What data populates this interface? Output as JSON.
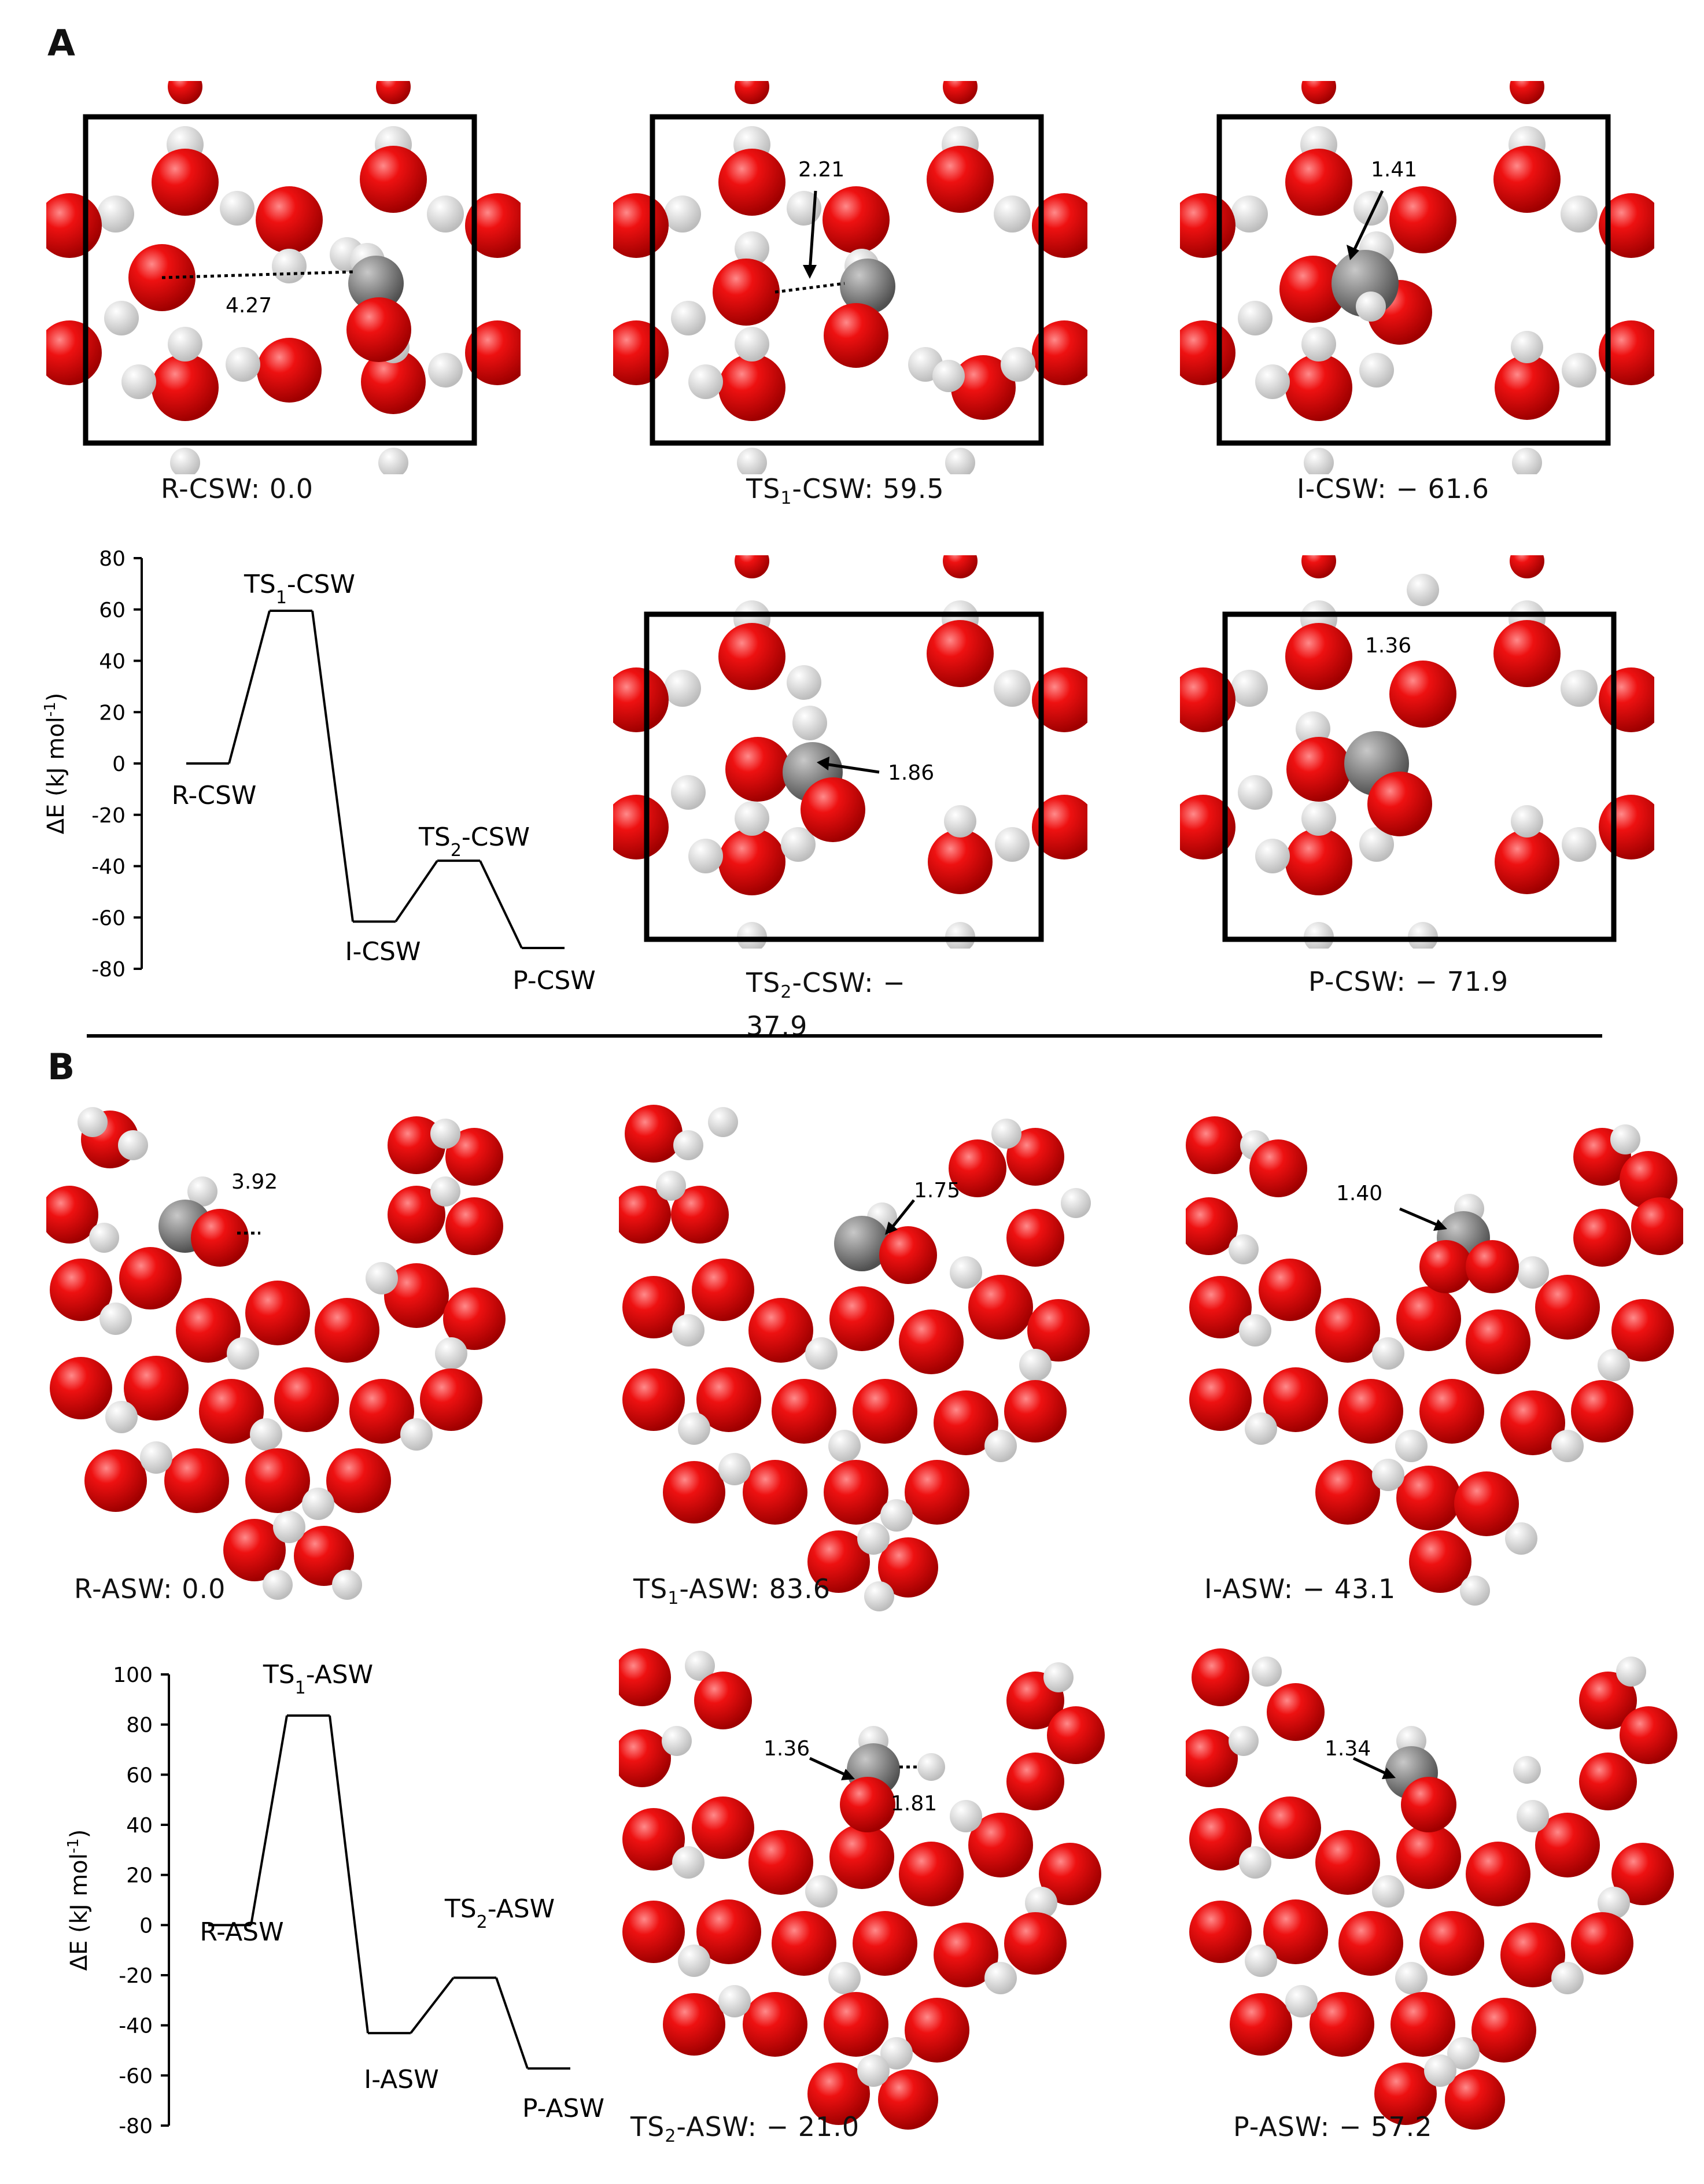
{
  "panels": {
    "a": "A",
    "b": "B"
  },
  "colors": {
    "oxygen": "#e00000",
    "hydrogen": "#f2f2f2",
    "carbon": "#808080",
    "cell": "#000000"
  },
  "csw": {
    "structures": [
      {
        "label": "R-CSW: 0.0",
        "distance": "4.27"
      },
      {
        "label_pre": "TS",
        "label_sub": "1",
        "label_post": "-CSW: 59.5",
        "distance": "2.21"
      },
      {
        "label": "I-CSW: − 61.6",
        "distance": "1.41"
      },
      {
        "label_pre": "TS",
        "label_sub": "2",
        "label_post": "-CSW: −",
        "label_line2": "37.9",
        "distance": "1.86"
      },
      {
        "label": "P-CSW: − 71.9",
        "distance": "1.36"
      }
    ]
  },
  "asw": {
    "structures": [
      {
        "label": "R-ASW: 0.0",
        "distance": "3.92"
      },
      {
        "label_pre": "TS",
        "label_sub": "1",
        "label_post": "-ASW: 83.6",
        "distance": "1.75"
      },
      {
        "label": "I-ASW: − 43.1",
        "distance": "1.40"
      },
      {
        "label_pre": "TS",
        "label_sub": "2",
        "label_post": "-ASW: − 21.0",
        "distance": "1.36",
        "distance2": "1.81"
      },
      {
        "label": "P-ASW: − 57.2",
        "distance": "1.34"
      }
    ]
  },
  "chart_data": [
    {
      "type": "line",
      "title": "",
      "xlabel": "",
      "ylabel": "ΔE (kJ mol-1)",
      "ylim": [
        -80,
        80
      ],
      "yticks": [
        80,
        60,
        40,
        20,
        0,
        -20,
        -40,
        -60,
        -80
      ],
      "series": [
        {
          "name": "CSW",
          "states": [
            "R-CSW",
            "TS1-CSW",
            "I-CSW",
            "TS2-CSW",
            "P-CSW"
          ],
          "values": [
            0.0,
            59.5,
            -61.6,
            -37.9,
            -71.9
          ]
        }
      ],
      "state_labels": [
        {
          "pre": "R-CSW",
          "sub": "",
          "post": ""
        },
        {
          "pre": "TS",
          "sub": "1",
          "post": "-CSW"
        },
        {
          "pre": "I-CSW",
          "sub": "",
          "post": ""
        },
        {
          "pre": "TS",
          "sub": "2",
          "post": "-CSW"
        },
        {
          "pre": "P-CSW",
          "sub": "",
          "post": ""
        }
      ]
    },
    {
      "type": "line",
      "title": "",
      "xlabel": "",
      "ylabel": "ΔE (kJ mol-1)",
      "ylim": [
        -80,
        100
      ],
      "yticks": [
        100,
        80,
        60,
        40,
        20,
        0,
        -20,
        -40,
        -60,
        -80
      ],
      "series": [
        {
          "name": "ASW",
          "states": [
            "R-ASW",
            "TS1-ASW",
            "I-ASW",
            "TS2-ASW",
            "P-ASW"
          ],
          "values": [
            0.0,
            83.6,
            -43.1,
            -21.0,
            -57.2
          ]
        }
      ],
      "state_labels": [
        {
          "pre": "R-ASW",
          "sub": "",
          "post": ""
        },
        {
          "pre": "TS",
          "sub": "1",
          "post": "-ASW"
        },
        {
          "pre": "I-ASW",
          "sub": "",
          "post": ""
        },
        {
          "pre": "TS",
          "sub": "2",
          "post": "-ASW"
        },
        {
          "pre": "P-ASW",
          "sub": "",
          "post": ""
        }
      ]
    }
  ]
}
